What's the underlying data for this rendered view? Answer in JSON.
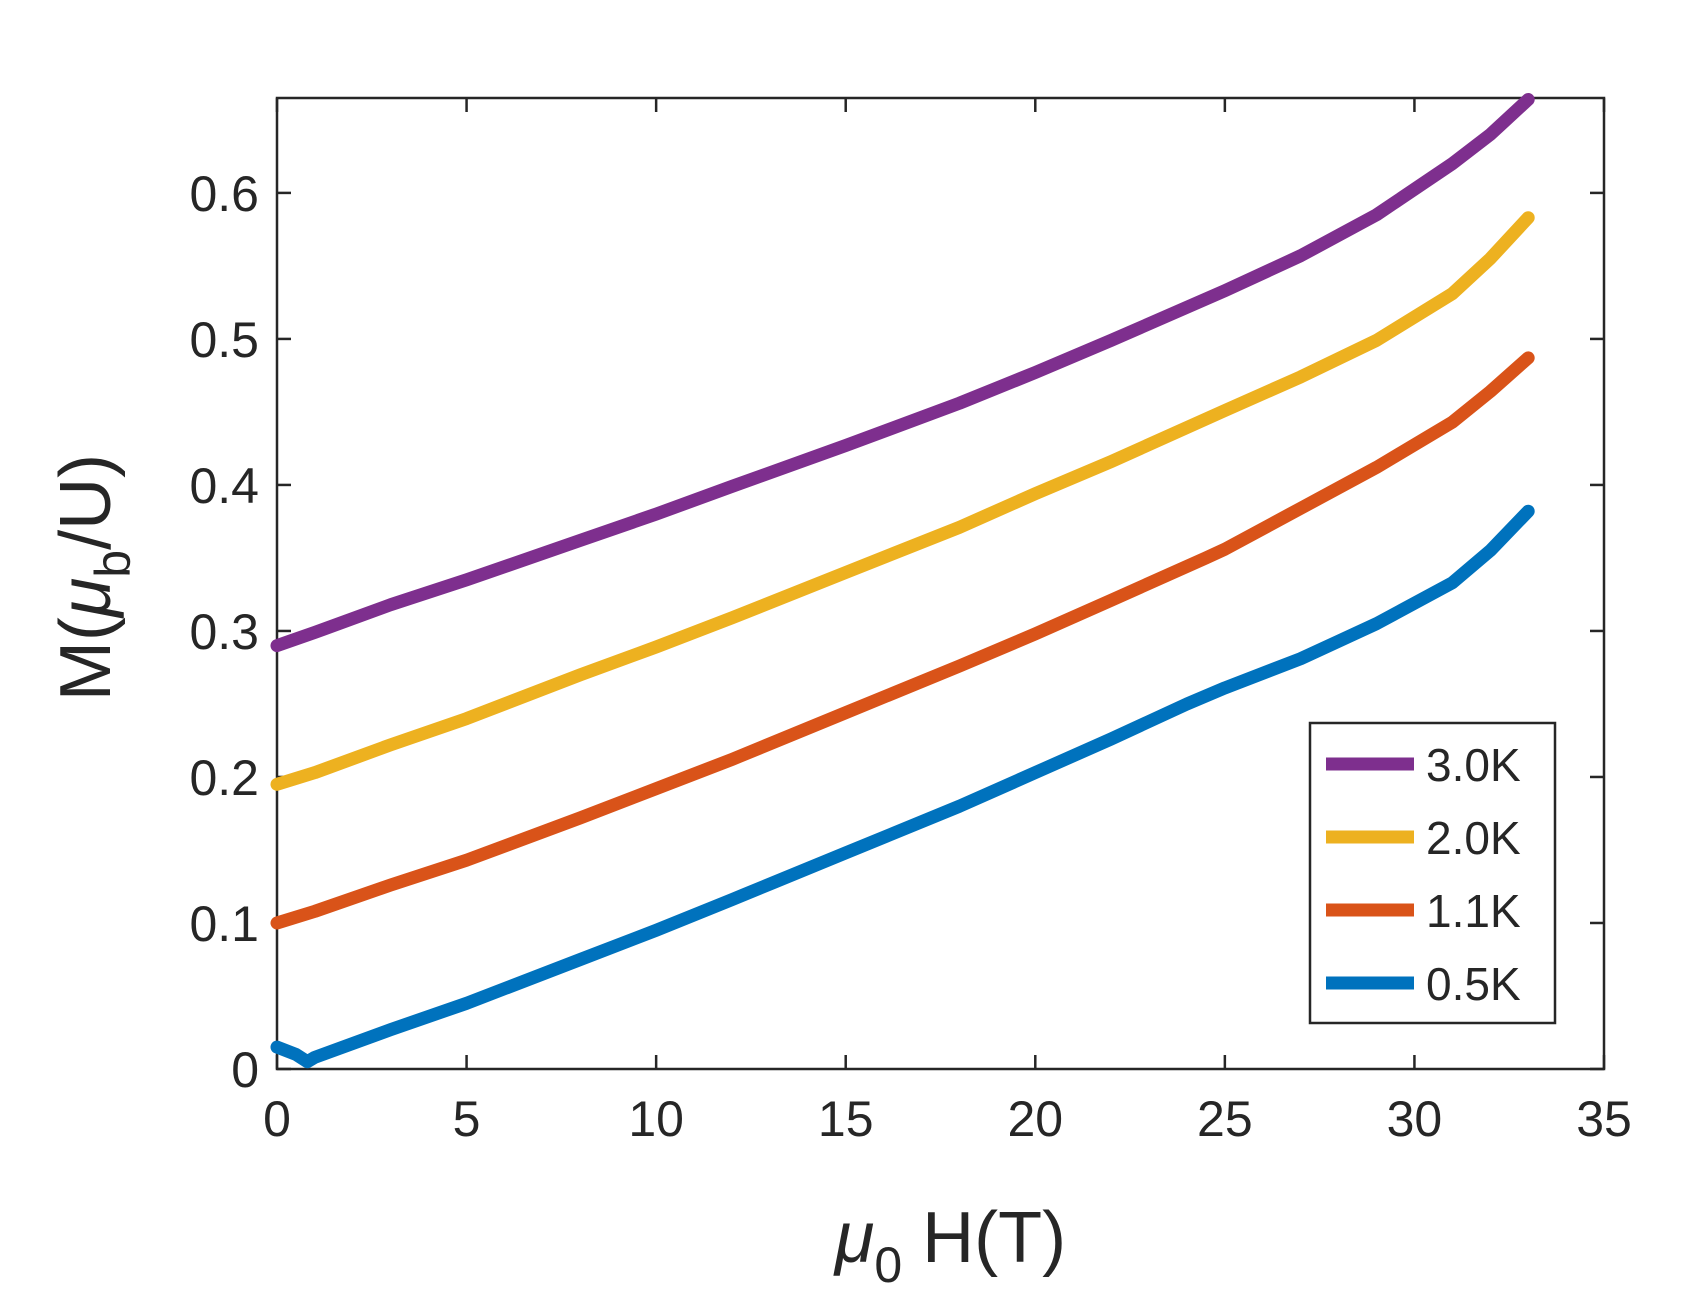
{
  "chart_data": {
    "type": "line",
    "title": "",
    "xlabel": {
      "symbol": "μ",
      "subscript": "0",
      "text": " H(T)"
    },
    "ylabel": {
      "prefix": "M(",
      "symbol": "μ",
      "subscript": "b",
      "suffix": "/U)"
    },
    "xlim": [
      0,
      35
    ],
    "ylim": [
      0,
      0.665
    ],
    "xticks": [
      0,
      5,
      10,
      15,
      20,
      25,
      30,
      35
    ],
    "xtick_labels": [
      "0",
      "5",
      "10",
      "15",
      "20",
      "25",
      "30",
      "35"
    ],
    "yticks": [
      0,
      0.1,
      0.2,
      0.3,
      0.4,
      0.5,
      0.6
    ],
    "ytick_labels": [
      "0",
      "0.1",
      "0.2",
      "0.3",
      "0.4",
      "0.5",
      "0.6"
    ],
    "grid": false,
    "legend_position": "bottom-right",
    "series": [
      {
        "name": "3.0K",
        "color": "#7E2F8E",
        "x": [
          0,
          1,
          3,
          5,
          8,
          10,
          12,
          15,
          18,
          20,
          22,
          25,
          27,
          29,
          31,
          32,
          33
        ],
        "y": [
          0.29,
          0.299,
          0.318,
          0.335,
          0.362,
          0.38,
          0.399,
          0.427,
          0.456,
          0.477,
          0.499,
          0.533,
          0.557,
          0.585,
          0.62,
          0.64,
          0.664
        ]
      },
      {
        "name": "2.0K",
        "color": "#EDB120",
        "x": [
          0,
          1,
          3,
          5,
          8,
          10,
          12,
          15,
          18,
          20,
          22,
          25,
          27,
          29,
          31,
          32,
          33
        ],
        "y": [
          0.195,
          0.203,
          0.222,
          0.24,
          0.27,
          0.289,
          0.309,
          0.34,
          0.371,
          0.394,
          0.416,
          0.451,
          0.474,
          0.499,
          0.531,
          0.555,
          0.583
        ]
      },
      {
        "name": "1.1K",
        "color": "#D95319",
        "x": [
          0,
          1,
          3,
          5,
          8,
          10,
          12,
          15,
          18,
          20,
          22,
          24.5,
          25,
          27,
          29,
          31,
          32,
          33
        ],
        "y": [
          0.1,
          0.108,
          0.126,
          0.143,
          0.172,
          0.192,
          0.212,
          0.244,
          0.276,
          0.298,
          0.321,
          0.35,
          0.356,
          0.384,
          0.412,
          0.443,
          0.464,
          0.487
        ]
      },
      {
        "name": "0.5K",
        "color": "#0072BD",
        "x": [
          0,
          0.5,
          0.8,
          1,
          3,
          5,
          8,
          10,
          12,
          15,
          18,
          20,
          22,
          24,
          25,
          27,
          29,
          31,
          32,
          33
        ],
        "y": [
          0.015,
          0.01,
          0.005,
          0.008,
          0.027,
          0.045,
          0.075,
          0.095,
          0.116,
          0.148,
          0.18,
          0.203,
          0.226,
          0.25,
          0.261,
          0.281,
          0.305,
          0.333,
          0.355,
          0.382
        ]
      }
    ]
  }
}
